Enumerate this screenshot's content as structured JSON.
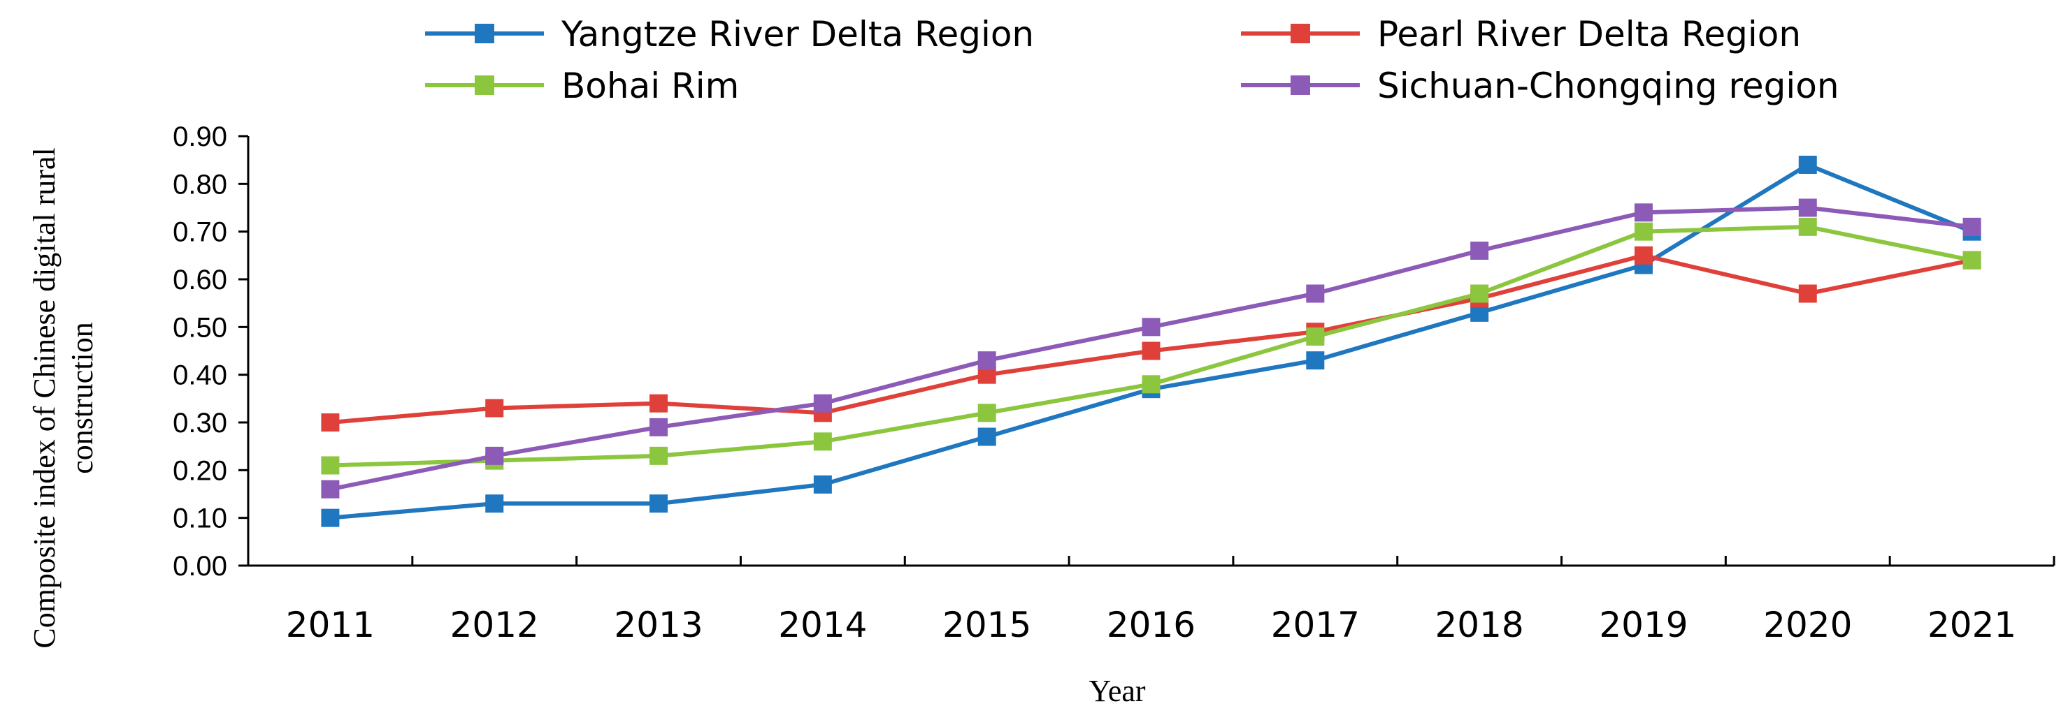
{
  "chart_data": {
    "type": "line",
    "title": "",
    "xlabel": "Year",
    "ylabel_line1": "Composite index of Chinese digital rural",
    "ylabel_line2": "construction",
    "categories": [
      "2011",
      "2012",
      "2013",
      "2014",
      "2015",
      "2016",
      "2017",
      "2018",
      "2019",
      "2020",
      "2021"
    ],
    "ylim": [
      0,
      0.9
    ],
    "yticks": [
      "0.00",
      "0.10",
      "0.20",
      "0.30",
      "0.40",
      "0.50",
      "0.60",
      "0.70",
      "0.80",
      "0.90"
    ],
    "legend_position": "top",
    "series": [
      {
        "name": "Yangtze River Delta Region",
        "color": "#1F77C0",
        "marker": "square",
        "values": [
          0.1,
          0.13,
          0.13,
          0.17,
          0.27,
          0.37,
          0.43,
          0.53,
          0.63,
          0.84,
          0.7
        ]
      },
      {
        "name": "Pearl River Delta Region",
        "color": "#E0403A",
        "marker": "square",
        "values": [
          0.3,
          0.33,
          0.34,
          0.32,
          0.4,
          0.45,
          0.49,
          0.56,
          0.65,
          0.57,
          0.64
        ]
      },
      {
        "name": "Bohai Rim",
        "color": "#8CC63F",
        "marker": "square",
        "values": [
          0.21,
          0.22,
          0.23,
          0.26,
          0.32,
          0.38,
          0.48,
          0.57,
          0.7,
          0.71,
          0.64
        ]
      },
      {
        "name": "Sichuan-Chongqing region",
        "color": "#8C5BB8",
        "marker": "square",
        "values": [
          0.16,
          0.23,
          0.29,
          0.34,
          0.43,
          0.5,
          0.57,
          0.66,
          0.74,
          0.75,
          0.71
        ]
      }
    ]
  }
}
